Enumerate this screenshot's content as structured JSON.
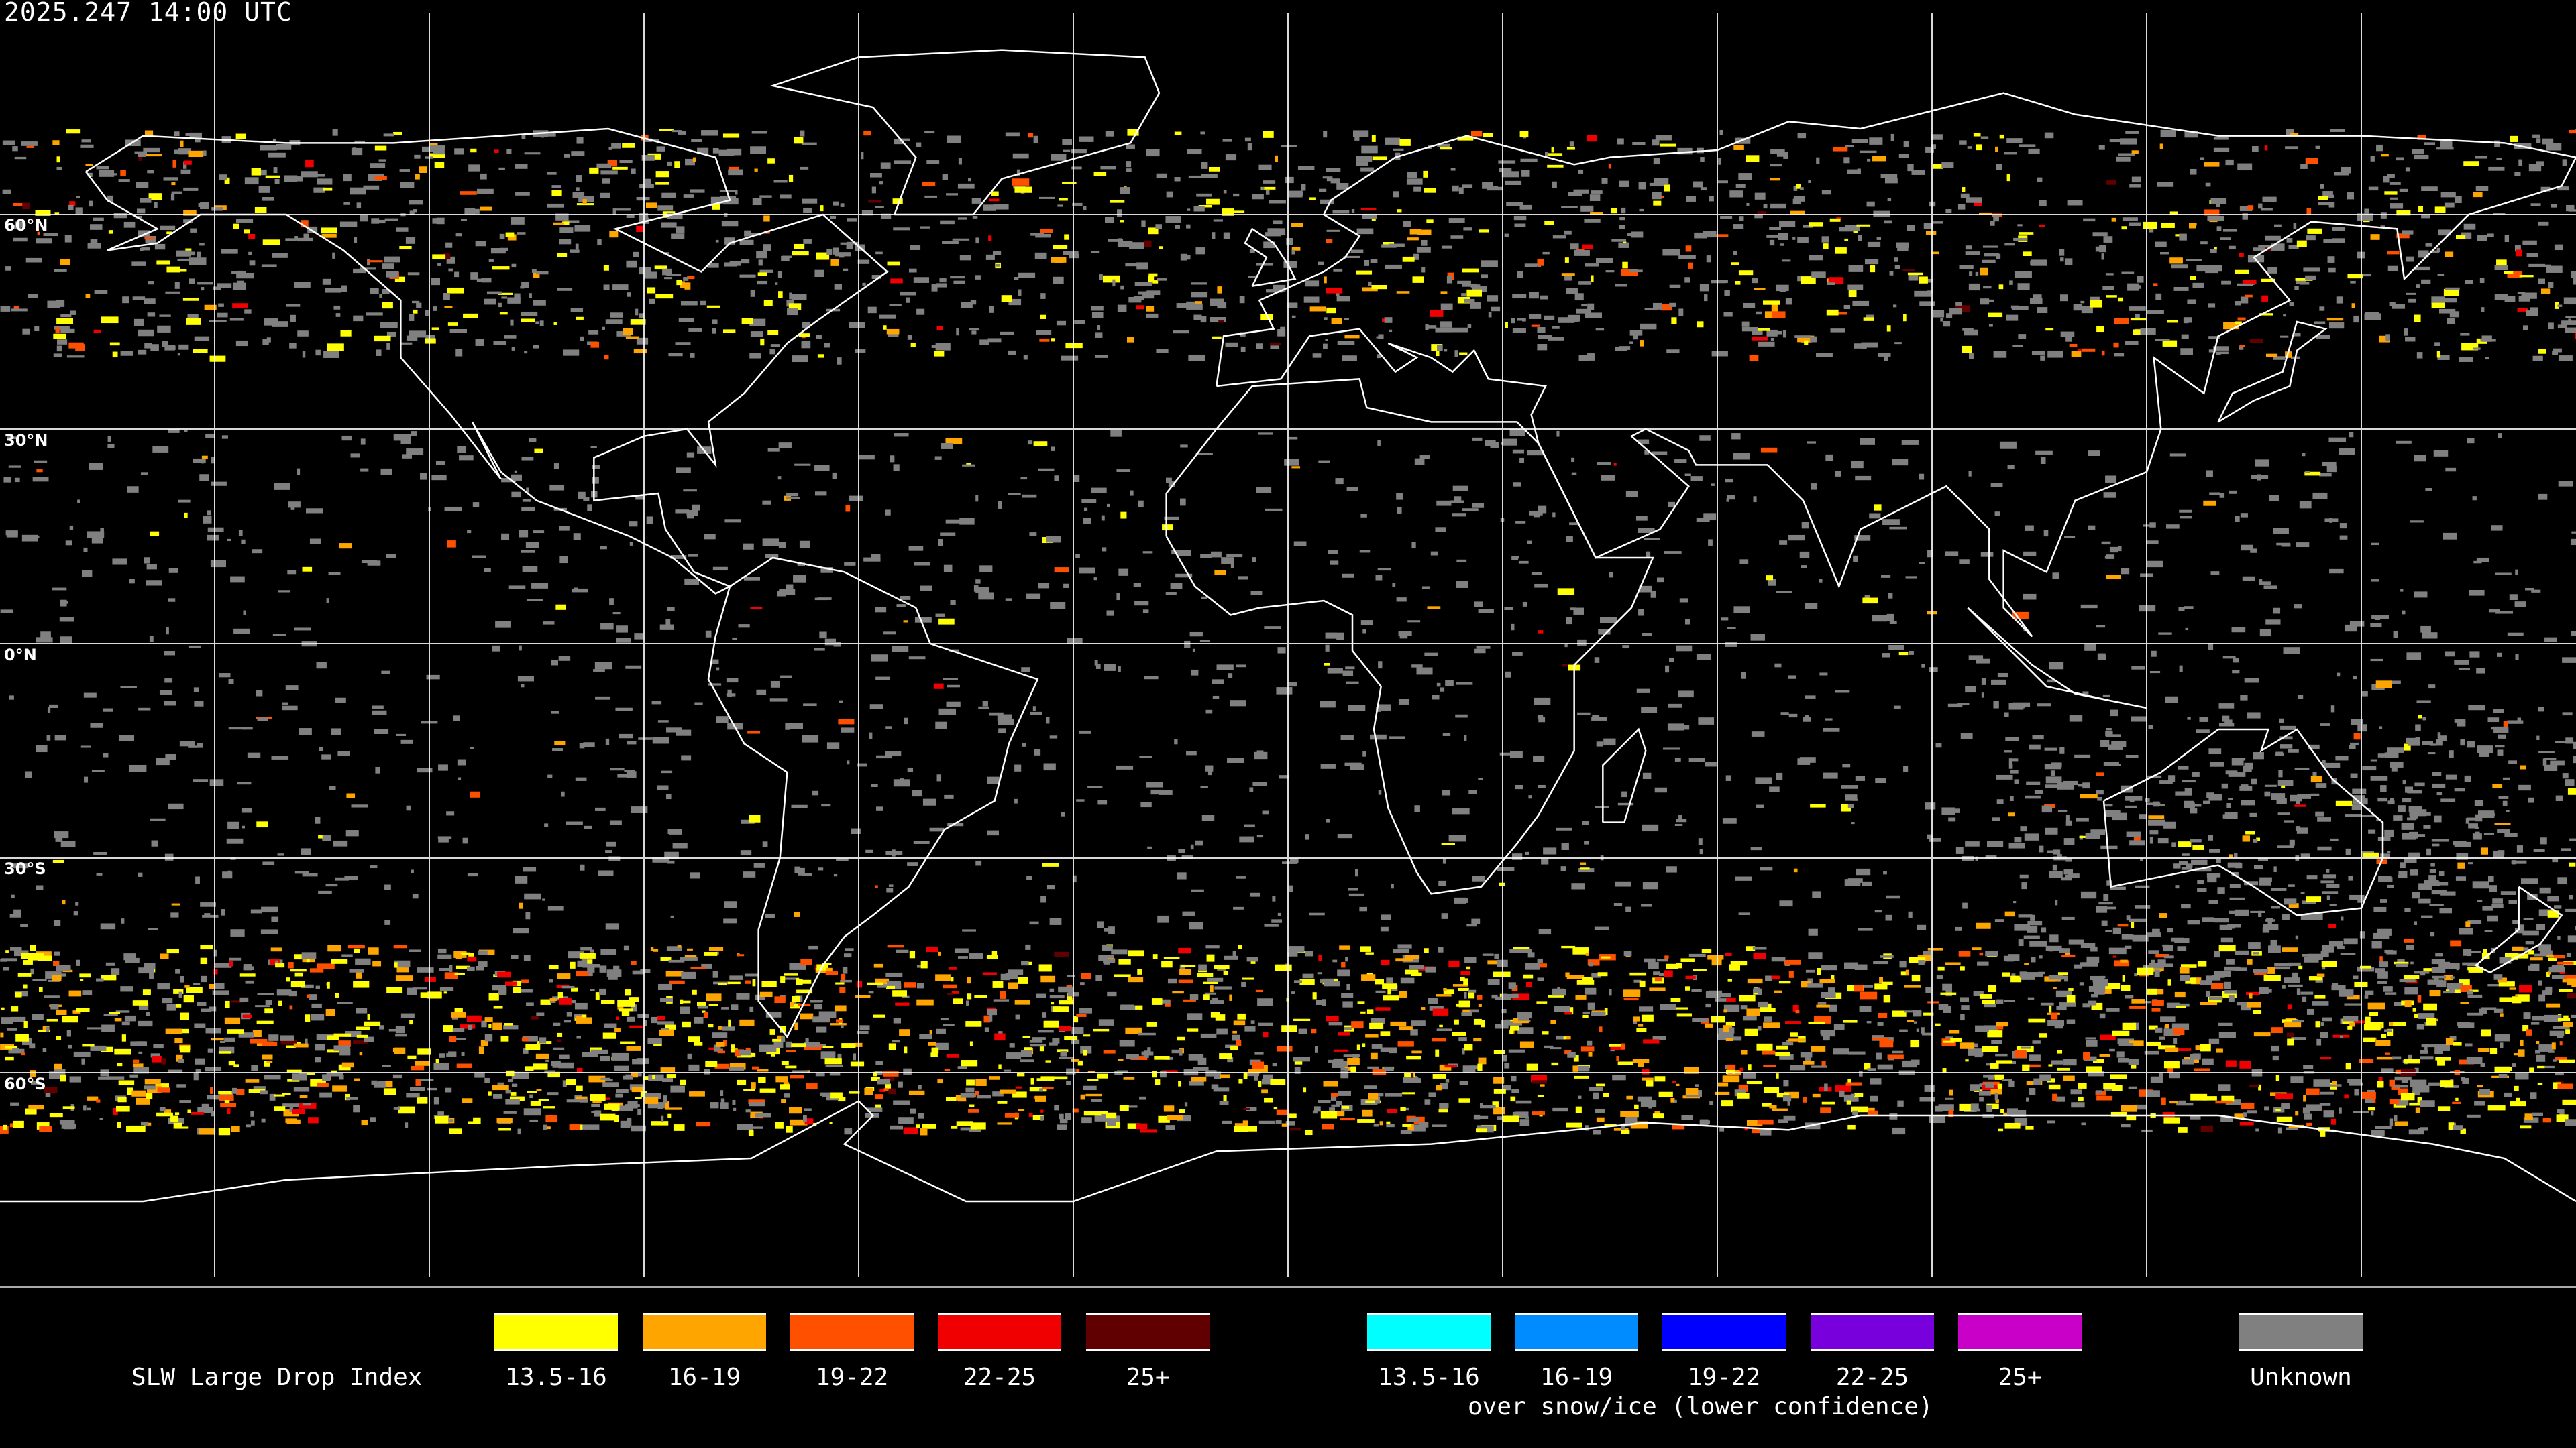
{
  "header": {
    "timestamp": "2025.247 14:00 UTC"
  },
  "map": {
    "projection": "equirectangular",
    "lat_labels": [
      "60°N",
      "30°N",
      "0°N",
      "30°S",
      "60°S"
    ],
    "colors": {
      "background": "#000000",
      "coastline": "#ffffff",
      "grid": "#ffffff"
    }
  },
  "legend": {
    "title": "SLW Large Drop Index",
    "standard": [
      {
        "label": "13.5-16",
        "color": "#ffff00"
      },
      {
        "label": "16-19",
        "color": "#ffa500"
      },
      {
        "label": "19-22",
        "color": "#ff5000"
      },
      {
        "label": "22-25",
        "color": "#f00000"
      },
      {
        "label": "25+",
        "color": "#600000"
      }
    ],
    "snow_ice": [
      {
        "label": "13.5-16",
        "color": "#00ffff"
      },
      {
        "label": "16-19",
        "color": "#008cff"
      },
      {
        "label": "19-22",
        "color": "#0000ff"
      },
      {
        "label": "22-25",
        "color": "#7800dc"
      },
      {
        "label": "25+",
        "color": "#c800c8"
      }
    ],
    "snow_ice_caption": "over snow/ice (lower confidence)",
    "unknown": {
      "label": "Unknown",
      "color": "#808080"
    }
  }
}
